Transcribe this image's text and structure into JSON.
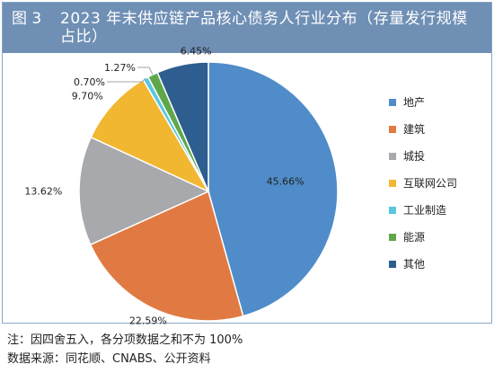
{
  "figure": {
    "label": "图 3",
    "title": "2023 年末供应链产品核心债务人行业分布（存量发行规模占比）"
  },
  "notes": [
    "注：因四舍五入，各分项数据之和不为 100%",
    "数据来源：同花顺、CNABS、公开资料"
  ],
  "chart_data": {
    "type": "pie",
    "title": "2023 年末供应链产品核心债务人行业分布（存量发行规模占比）",
    "unit": "%",
    "start": "12 o'clock, clockwise",
    "legend_position": "right",
    "slices": [
      {
        "label": "地产",
        "value": 45.66,
        "display": "45.66%",
        "color": "#4f8cc9"
      },
      {
        "label": "建筑",
        "value": 22.59,
        "display": "22.59%",
        "color": "#e07a42"
      },
      {
        "label": "城投",
        "value": 13.62,
        "display": "13.62%",
        "color": "#a7a9ac"
      },
      {
        "label": "互联网公司",
        "value": 9.7,
        "display": "9.70%",
        "color": "#f2b731"
      },
      {
        "label": "工业制造",
        "value": 0.7,
        "display": "0.70%",
        "color": "#5bc7df"
      },
      {
        "label": "能源",
        "value": 1.27,
        "display": "1.27%",
        "color": "#5fa84a"
      },
      {
        "label": "其他",
        "value": 6.45,
        "display": "6.45%",
        "color": "#2e5d8f"
      }
    ]
  }
}
